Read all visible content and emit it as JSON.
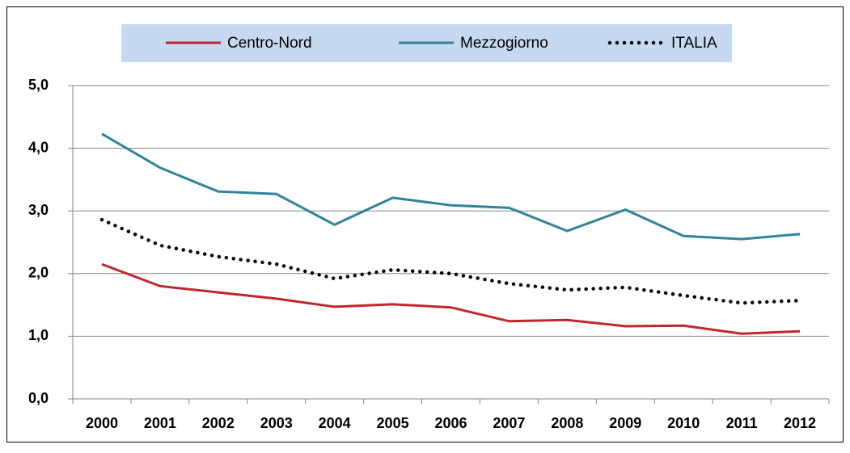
{
  "chart_data": {
    "type": "line",
    "categories": [
      "2000",
      "2001",
      "2002",
      "2003",
      "2004",
      "2005",
      "2006",
      "2007",
      "2008",
      "2009",
      "2010",
      "2011",
      "2012"
    ],
    "series": [
      {
        "name": "Centro-Nord",
        "color": "#c0272d",
        "line_style": "solid",
        "values": [
          2.15,
          1.8,
          1.7,
          1.6,
          1.47,
          1.51,
          1.46,
          1.24,
          1.26,
          1.16,
          1.17,
          1.04,
          1.08
        ]
      },
      {
        "name": "Mezzogiorno",
        "color": "#31849b",
        "line_style": "solid",
        "values": [
          4.23,
          3.69,
          3.31,
          3.27,
          2.78,
          3.21,
          3.09,
          3.05,
          2.68,
          3.02,
          2.6,
          2.55,
          2.63
        ]
      },
      {
        "name": "ITALIA",
        "color": "#000000",
        "line_style": "dotted",
        "values": [
          2.86,
          2.45,
          2.27,
          2.15,
          1.92,
          2.06,
          2.0,
          1.84,
          1.74,
          1.78,
          1.65,
          1.53,
          1.57
        ]
      }
    ],
    "ylim": [
      0,
      5
    ],
    "yticks": [
      {
        "value": 0,
        "label": "0,0"
      },
      {
        "value": 1,
        "label": "1,0"
      },
      {
        "value": 2,
        "label": "2,0"
      },
      {
        "value": 3,
        "label": "3,0"
      },
      {
        "value": 4,
        "label": "4,0"
      },
      {
        "value": 5,
        "label": "5,0"
      }
    ],
    "grid": true,
    "legend": "top"
  }
}
